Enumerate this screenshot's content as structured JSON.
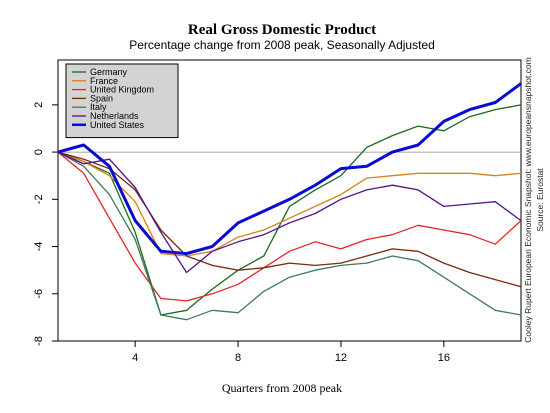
{
  "chart_data": {
    "type": "line",
    "title": "Real Gross Domestic Product",
    "subtitle": "Percentage change from 2008 peak, Seasonally Adjusted",
    "xlabel": "Quarters from 2008 peak",
    "ylabel": "",
    "xlim": [
      1,
      19
    ],
    "ylim": [
      -8,
      3.9
    ],
    "x_ticks": [
      4,
      8,
      12,
      16
    ],
    "x_tick_labels": [
      "4",
      "8",
      "12",
      "16"
    ],
    "y_ticks": [
      -8,
      -6,
      -4,
      -2,
      0,
      2
    ],
    "y_tick_labels": [
      "-8",
      "-6",
      "-4",
      "-2",
      "0",
      "2"
    ],
    "grid": false,
    "reference_line": 0,
    "legend_position": "top-left",
    "series": [
      {
        "name": "Germany",
        "color": "#1a6b1a",
        "width": 1.3,
        "x": [
          1,
          2,
          3,
          4,
          5,
          6,
          7,
          8,
          9,
          10,
          11,
          12,
          13,
          14,
          15,
          16,
          17,
          18,
          19
        ],
        "y": [
          0,
          -0.4,
          -0.9,
          -3.4,
          -6.9,
          -6.7,
          -5.8,
          -5.0,
          -4.4,
          -2.3,
          -1.6,
          -1.0,
          0.2,
          0.7,
          1.1,
          0.9,
          1.5,
          1.8,
          2.0
        ]
      },
      {
        "name": "France",
        "color": "#d4841c",
        "width": 1.3,
        "x": [
          1,
          2,
          3,
          4,
          5,
          6,
          7,
          8,
          9,
          10,
          11,
          12,
          13,
          14,
          15,
          16,
          17,
          18,
          19
        ],
        "y": [
          0,
          -0.4,
          -1.0,
          -2.1,
          -4.3,
          -4.4,
          -4.2,
          -3.6,
          -3.3,
          -2.8,
          -2.3,
          -1.8,
          -1.1,
          -1.0,
          -0.9,
          -0.9,
          -0.9,
          -1.0,
          -0.9
        ]
      },
      {
        "name": "United Kingdom",
        "color": "#e82424",
        "width": 1.3,
        "x": [
          1,
          2,
          3,
          4,
          5,
          6,
          7,
          8,
          9,
          10,
          11,
          12,
          13,
          14,
          15,
          16,
          17,
          18,
          19
        ],
        "y": [
          0,
          -0.9,
          -2.8,
          -4.7,
          -6.2,
          -6.3,
          -6.0,
          -5.6,
          -4.9,
          -4.2,
          -3.8,
          -4.1,
          -3.7,
          -3.5,
          -3.1,
          -3.3,
          -3.5,
          -3.9,
          -2.9
        ]
      },
      {
        "name": "Spain",
        "color": "#7a2a0a",
        "width": 1.3,
        "x": [
          1,
          2,
          3,
          4,
          5,
          6,
          7,
          8,
          9,
          10,
          11,
          12,
          13,
          14,
          15,
          16,
          17,
          18,
          19
        ],
        "y": [
          0,
          -0.3,
          -0.7,
          -1.6,
          -3.3,
          -4.4,
          -4.8,
          -5.0,
          -4.9,
          -4.7,
          -4.8,
          -4.7,
          -4.4,
          -4.1,
          -4.2,
          -4.7,
          -5.1,
          -5.4,
          -5.7
        ]
      },
      {
        "name": "Italy",
        "color": "#3f7a5e",
        "width": 1.3,
        "x": [
          1,
          2,
          3,
          4,
          5,
          6,
          7,
          8,
          9,
          10,
          11,
          12,
          13,
          14,
          15,
          16,
          17,
          18,
          19
        ],
        "y": [
          0,
          -0.6,
          -1.8,
          -3.7,
          -6.9,
          -7.1,
          -6.7,
          -6.8,
          -5.9,
          -5.3,
          -5.0,
          -4.8,
          -4.7,
          -4.4,
          -4.6,
          -5.3,
          -6.0,
          -6.7,
          -6.9
        ]
      },
      {
        "name": "Netherlands",
        "color": "#50138a",
        "width": 1.3,
        "x": [
          1,
          2,
          3,
          4,
          5,
          6,
          7,
          8,
          9,
          10,
          11,
          12,
          13,
          14,
          15,
          16,
          17,
          18,
          19
        ],
        "y": [
          0,
          -0.5,
          -0.3,
          -1.5,
          -3.4,
          -5.1,
          -4.2,
          -3.8,
          -3.5,
          -3.0,
          -2.6,
          -2.0,
          -1.6,
          -1.4,
          -1.6,
          -2.3,
          -2.2,
          -2.1,
          -2.9
        ]
      },
      {
        "name": "United States",
        "color": "#0a0ad0",
        "width": 3,
        "x": [
          1,
          2,
          3,
          4,
          5,
          6,
          7,
          8,
          9,
          10,
          11,
          12,
          13,
          14,
          15,
          16,
          17,
          18,
          19
        ],
        "y": [
          0,
          0.3,
          -0.6,
          -2.9,
          -4.2,
          -4.3,
          -4.0,
          -3.0,
          -2.5,
          -2.0,
          -1.4,
          -0.7,
          -0.6,
          0.0,
          0.3,
          1.3,
          1.8,
          2.1,
          2.9
        ]
      }
    ],
    "credits": [
      "Cooley Rupert European Economic Snapshot: www.europeansnapshot.com",
      "Source: Eurostat"
    ]
  }
}
